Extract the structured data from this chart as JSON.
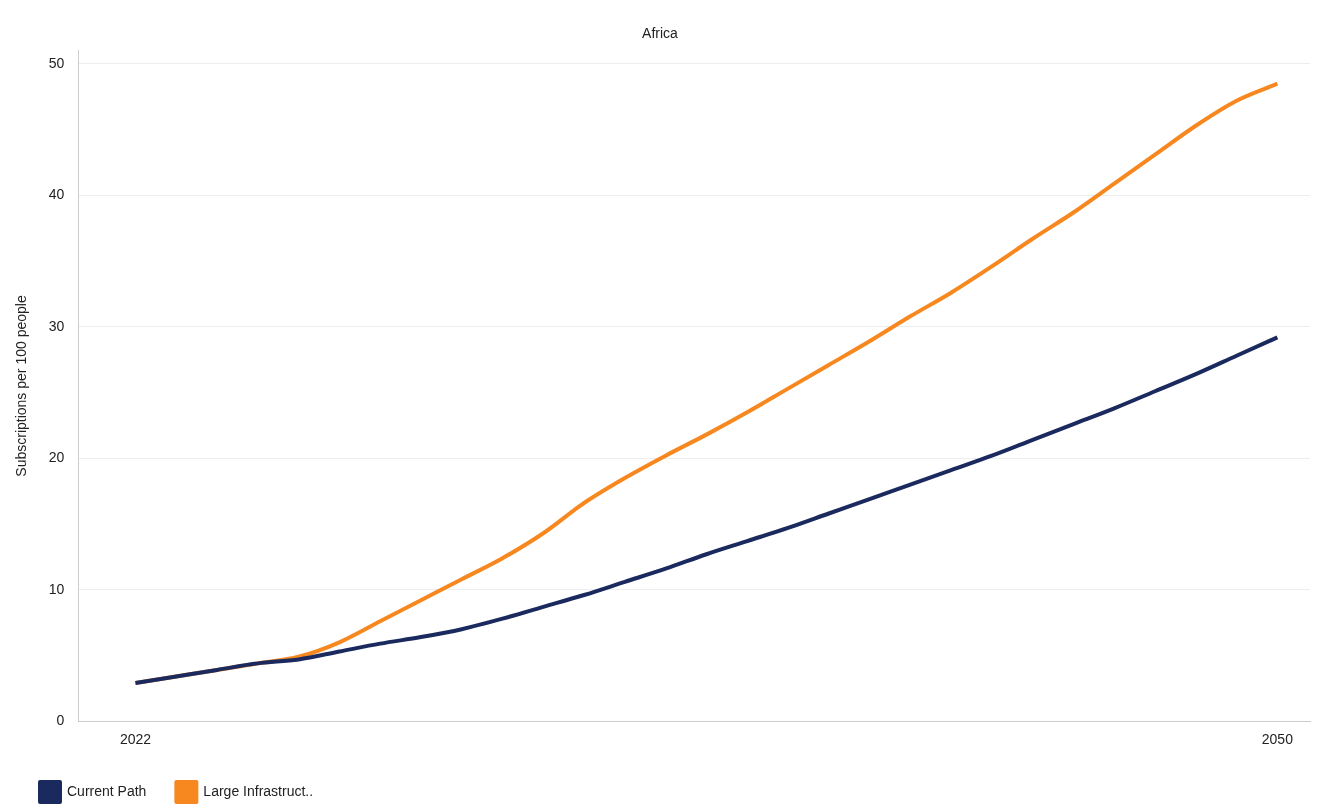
{
  "chart_data": {
    "type": "line",
    "title": "Africa",
    "ylabel": "Subscriptions per 100 people",
    "x": [
      2022,
      2023,
      2024,
      2025,
      2026,
      2027,
      2028,
      2029,
      2030,
      2031,
      2032,
      2033,
      2034,
      2035,
      2036,
      2037,
      2038,
      2039,
      2040,
      2041,
      2042,
      2043,
      2044,
      2045,
      2046,
      2047,
      2048,
      2049,
      2050
    ],
    "series": [
      {
        "name": "Current Path",
        "color": "#1b2a5e",
        "values": [
          2.9,
          3.4,
          3.9,
          4.4,
          4.7,
          5.3,
          5.9,
          6.4,
          7.0,
          7.8,
          8.7,
          9.6,
          10.6,
          11.6,
          12.7,
          13.7,
          14.7,
          15.8,
          16.9,
          18.0,
          19.1,
          20.2,
          21.4,
          22.6,
          23.8,
          25.1,
          26.4,
          27.8,
          29.2
        ]
      },
      {
        "name": "Large Infrastruct..",
        "color": "#f7881f",
        "values": [
          2.9,
          3.4,
          3.9,
          4.4,
          4.9,
          6.0,
          7.6,
          9.2,
          10.8,
          12.4,
          14.3,
          16.6,
          18.5,
          20.2,
          21.8,
          23.5,
          25.3,
          27.1,
          28.9,
          30.8,
          32.6,
          34.6,
          36.7,
          38.7,
          40.9,
          43.1,
          45.3,
          47.2,
          48.5
        ]
      }
    ],
    "xlim": [
      2020.6,
      2050.8
    ],
    "xticks": [
      2022,
      2050
    ],
    "ylim": [
      0,
      51
    ],
    "yticks": [
      0,
      10,
      20,
      30,
      40,
      50
    ],
    "grid": "y",
    "legend": "bottom left",
    "marker": "none",
    "line_style": "solid"
  }
}
